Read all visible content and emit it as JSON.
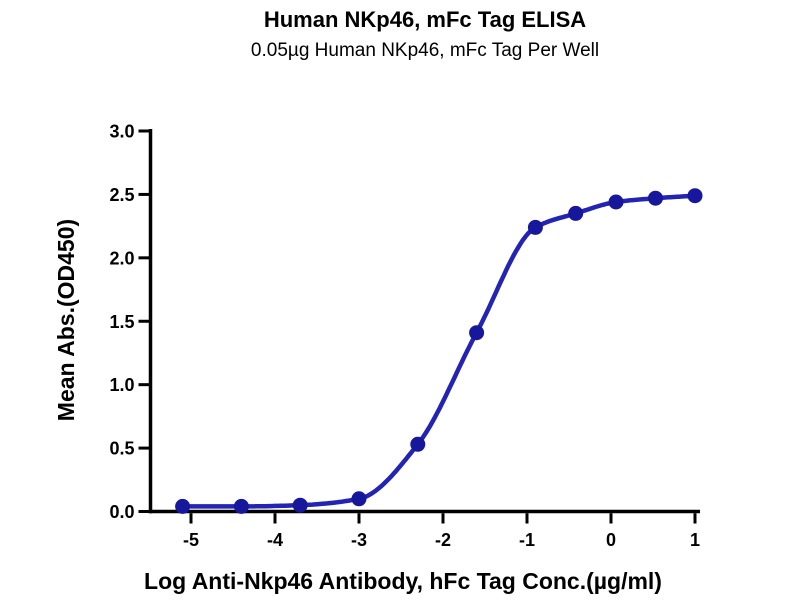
{
  "chart_data": {
    "type": "scatter",
    "curve_fit": "4PL sigmoidal dose-response fit line through points",
    "title": "Human NKp46, mFc Tag ELISA",
    "subtitle": "0.05µg Human NKp46, mFc Tag Per Well",
    "xlabel": "Log Anti-Nkp46 Antibody, hFc Tag Conc.(µg/ml)",
    "ylabel": "Mean Abs.(OD450)",
    "x": [
      -5.1,
      -4.4,
      -3.7,
      -3.0,
      -2.3,
      -1.6,
      -0.9,
      -0.42,
      0.06,
      0.53,
      1.0
    ],
    "y": [
      0.04,
      0.04,
      0.05,
      0.1,
      0.53,
      1.41,
      2.24,
      2.35,
      2.44,
      2.47,
      2.49
    ],
    "xlim": [
      -5.5,
      1.06
    ],
    "ylim": [
      0,
      3.0
    ],
    "xtick_values": [
      -5,
      -4,
      -3,
      -2,
      -1,
      0,
      1
    ],
    "xtick_labels": [
      "-5",
      "-4",
      "-3",
      "-2",
      "-1",
      "0",
      "1"
    ],
    "ytick_values": [
      0,
      0.5,
      1.0,
      1.5,
      2.0,
      2.5,
      3.0
    ],
    "ytick_labels": [
      "0.0",
      "0.5",
      "1.0",
      "1.5",
      "2.0",
      "2.5",
      "3.0"
    ],
    "grid": false,
    "legend": "none",
    "colors": {
      "line": "#2424b4",
      "marker": "#17179c",
      "axis": "#000000",
      "text": "#000000",
      "background": "#ffffff"
    }
  }
}
